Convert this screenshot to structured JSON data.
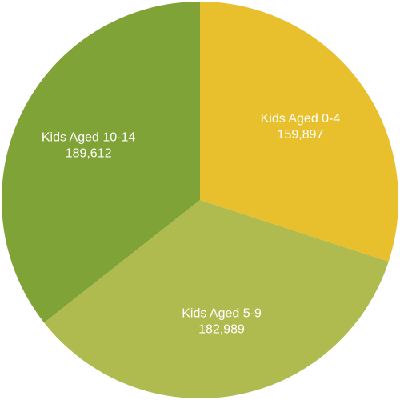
{
  "chart_data": {
    "type": "pie",
    "title": "",
    "slices": [
      {
        "label": "Kids Aged 0-4",
        "value": 159897,
        "value_text": "159,897",
        "color": "#E8C02E"
      },
      {
        "label": "Kids Aged 5-9",
        "value": 182989,
        "value_text": "182,989",
        "color": "#AFBB4E"
      },
      {
        "label": "Kids Aged 10-14",
        "value": 189612,
        "value_text": "189,612",
        "color": "#7FA336"
      }
    ],
    "start_angle_deg": 0,
    "direction": "clockwise",
    "legend": "none",
    "label_color": "#FFFFFF"
  }
}
